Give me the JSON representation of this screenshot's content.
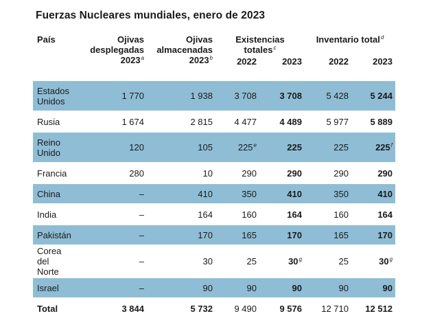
{
  "title": "Fuerzas Nucleares mundiales, enero de 2023",
  "headers": {
    "country": "País",
    "deployed": [
      "Ojivas",
      "desplegadas",
      "2023"
    ],
    "deployed_note": "a",
    "stored": [
      "Ojivas",
      "almacenadas",
      "2023"
    ],
    "stored_note": "b",
    "stockpile": "Existencias totales",
    "stockpile_note": "c",
    "inventory": "Inventario total",
    "inventory_note": "d",
    "year_2022": "2022",
    "year_2023": "2023"
  },
  "rows": [
    {
      "country": [
        "Estados",
        "Unidos"
      ],
      "deployed": "1 770",
      "stored": "1 938",
      "stock2022": "3 708",
      "stock2023": "3 708",
      "inv2022": "5 428",
      "inv2023": "5 244"
    },
    {
      "country": [
        "Rusia"
      ],
      "deployed": "1 674",
      "stored": "2 815",
      "stock2022": "4 477",
      "stock2023": "4 489",
      "inv2022": "5 977",
      "inv2023": "5 889"
    },
    {
      "country": [
        "Reino",
        "Unido"
      ],
      "deployed": "120",
      "stored": "105",
      "stock2022": "225",
      "stock2022_note": "e",
      "stock2023": "225",
      "inv2022": "225",
      "inv2023": "225",
      "inv2023_note": "f"
    },
    {
      "country": [
        "Francia"
      ],
      "deployed": "280",
      "stored": "10",
      "stock2022": "290",
      "stock2023": "290",
      "inv2022": "290",
      "inv2023": "290"
    },
    {
      "country": [
        "China"
      ],
      "deployed": "–",
      "stored": "410",
      "stock2022": "350",
      "stock2023": "410",
      "inv2022": "350",
      "inv2023": "410"
    },
    {
      "country": [
        "India"
      ],
      "deployed": "–",
      "stored": "164",
      "stock2022": "160",
      "stock2023": "164",
      "inv2022": "160",
      "inv2023": "164"
    },
    {
      "country": [
        "Pakistán"
      ],
      "deployed": "–",
      "stored": "170",
      "stock2022": "165",
      "stock2023": "170",
      "inv2022": "165",
      "inv2023": "170"
    },
    {
      "country": [
        "Corea del",
        "Norte"
      ],
      "deployed": "–",
      "stored": "30",
      "stock2022": "25",
      "stock2023": "30",
      "stock2023_note": "g",
      "inv2022": "25",
      "inv2023": "30",
      "inv2023_note": "g"
    },
    {
      "country": [
        "Israel"
      ],
      "deployed": "–",
      "stored": "90",
      "stock2022": "90",
      "stock2023": "90",
      "inv2022": "90",
      "inv2023": "90"
    }
  ],
  "total": {
    "label": "Total",
    "deployed": "3 844",
    "stored": "5 732",
    "stock2022": "9 490",
    "stock2023": "9 576",
    "inv2022": "12 710",
    "inv2023": "12 512"
  },
  "colors": {
    "row_shade": "#8fbdd5"
  }
}
